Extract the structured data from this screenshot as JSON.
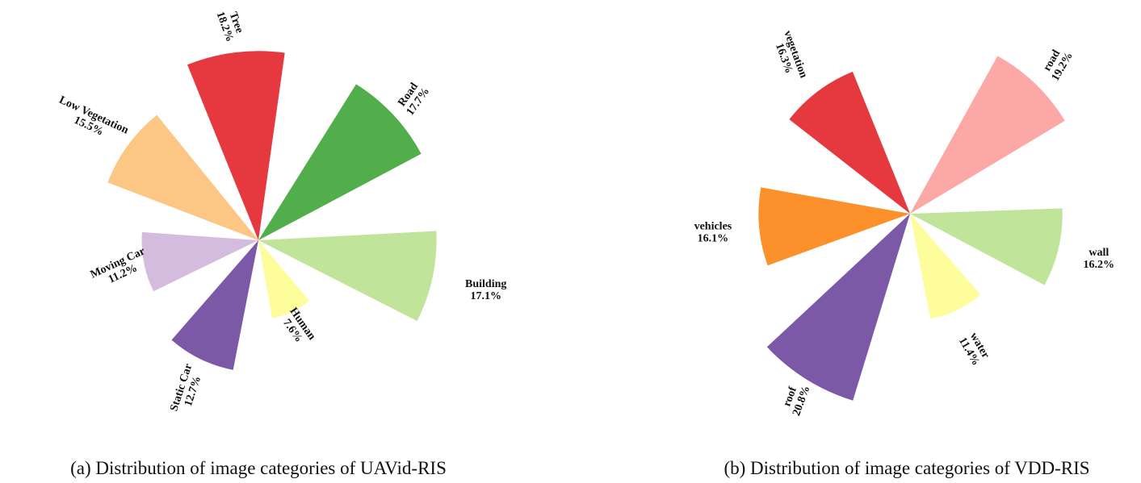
{
  "chart_data": [
    {
      "type": "pie",
      "style": "polar-area",
      "caption": "(a) Distribution of image categories of UAVid-RIS",
      "slices": [
        {
          "name": "Tree",
          "value_label": "18.2%",
          "value": 18.2,
          "color": "#e6393f"
        },
        {
          "name": "Road",
          "value_label": "17.7%",
          "value": 17.7,
          "color": "#52ad4b"
        },
        {
          "name": "Building",
          "value_label": "17.1%",
          "value": 17.1,
          "color": "#c0e59a"
        },
        {
          "name": "Human",
          "value_label": "7.6%",
          "value": 7.6,
          "color": "#fdfd9c"
        },
        {
          "name": "Static Car",
          "value_label": "12.7%",
          "value": 12.7,
          "color": "#7c59a6"
        },
        {
          "name": "Moving Car",
          "value_label": "11.2%",
          "value": 11.2,
          "color": "#d3bcdd"
        },
        {
          "name": "Low Vegetation",
          "value_label": "15.5%",
          "value": 15.5,
          "color": "#fcc784"
        }
      ]
    },
    {
      "type": "pie",
      "style": "polar-area",
      "caption": "(b) Distribution of image categories of VDD-RIS",
      "slices": [
        {
          "name": "road",
          "value_label": "19.2%",
          "value": 19.2,
          "color": "#fca8a7"
        },
        {
          "name": "wall",
          "value_label": "16.2%",
          "value": 16.2,
          "color": "#c0e59a"
        },
        {
          "name": "water",
          "value_label": "11.4%",
          "value": 11.4,
          "color": "#fdfd9c"
        },
        {
          "name": "roof",
          "value_label": "20.8%",
          "value": 20.8,
          "color": "#7c59a6"
        },
        {
          "name": "vehicles",
          "value_label": "16.1%",
          "value": 16.1,
          "color": "#fc902a"
        },
        {
          "name": "vegetation",
          "value_label": "16.3%",
          "value": 16.3,
          "color": "#e6393f"
        }
      ]
    }
  ]
}
